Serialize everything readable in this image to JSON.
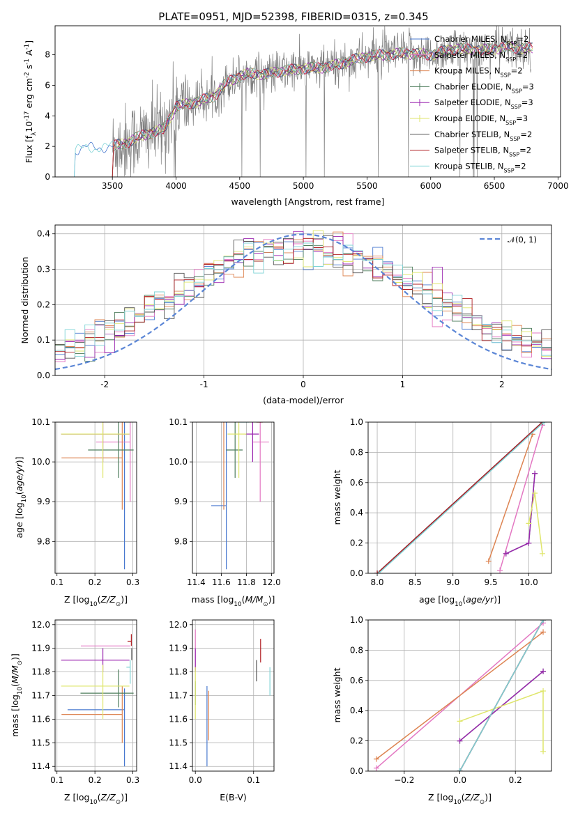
{
  "figure": {
    "title": "PLATE=0951, MJD=52398, FIBERID=0315, z=0.345"
  },
  "palette": {
    "Chabrier MILES": "#4878cf",
    "Salpeter MILES": "#e377c2",
    "Kroupa MILES": "#dd8452",
    "Chabrier ELODIE": "#4e7d5c",
    "Salpeter ELODIE": "#9b27b0",
    "Kroupa ELODIE": "#dfe66b",
    "Chabrier STELIB": "#555555",
    "Salpeter STELIB": "#b01e22",
    "Kroupa STELIB": "#7ed3d6",
    "normal": "#5b86d6"
  },
  "chart_data": [
    {
      "id": "spectrum",
      "type": "line",
      "xlabel": "wavelength [Angstrom, rest frame]",
      "ylabel": "Flux [f_λ 10^-17 erg cm^-2 s^-1 A^-1]",
      "xlim": [
        3050,
        7020
      ],
      "ylim": [
        0,
        9.9
      ],
      "xticks": [
        3500,
        4000,
        4500,
        5000,
        5500,
        6000,
        6500,
        7000
      ],
      "yticks": [
        0,
        2,
        4,
        6,
        8
      ],
      "legend": "right",
      "legend_entries": [
        "Chabrier MILES, N_SSP=2",
        "Salpeter MILES, N_SSP=2",
        "Kroupa MILES, N_SSP=2",
        "Chabrier ELODIE, N_SSP=3",
        "Salpeter ELODIE, N_SSP=3",
        "Kroupa ELODIE, N_SSP=3",
        "Chabrier STELIB, N_SSP=2",
        "Salpeter STELIB, N_SSP=2",
        "Kroupa STELIB, N_SSP=2"
      ],
      "continuum_shape": {
        "x": [
          3200,
          3300,
          3500,
          3600,
          3700,
          3800,
          3900,
          4000,
          4100,
          4200,
          4300,
          4400,
          4500,
          4600,
          4700,
          4800,
          5000,
          5200,
          5500,
          5800,
          6000,
          6200,
          6400,
          6600,
          6800
        ],
        "y": [
          1.7,
          1.9,
          2.0,
          2.2,
          2.6,
          2.9,
          3.1,
          4.6,
          4.8,
          5.0,
          5.3,
          6.2,
          6.6,
          6.8,
          6.7,
          6.9,
          7.1,
          7.2,
          7.9,
          8.1,
          8.0,
          8.4,
          8.3,
          8.5,
          8.4
        ]
      }
    },
    {
      "id": "residuals",
      "type": "line",
      "xlabel": "(data-model)/error",
      "ylabel": "Normed distribution",
      "xlim": [
        -2.5,
        2.5
      ],
      "ylim": [
        0,
        0.425
      ],
      "xticks": [
        -2,
        -1,
        0,
        1,
        2
      ],
      "yticks": [
        0.0,
        0.1,
        0.2,
        0.3,
        0.4
      ],
      "legend": "top-right",
      "legend_entries": [
        "N(0,1)"
      ],
      "series": [
        {
          "name": "N(0,1)",
          "mu": 0,
          "sigma": 1
        }
      ],
      "histogram_bins": 50,
      "histogram_range": [
        -2.5,
        2.5
      ]
    },
    {
      "id": "age_vs_Z",
      "type": "scatter",
      "xlabel": "Z [log10(Z/Z⊙)]",
      "ylabel": "age [log10(age/yr)]",
      "xlim": [
        0.095,
        0.31
      ],
      "ylim": [
        9.72,
        10.1
      ],
      "xticks": [
        0.1,
        0.2,
        0.3
      ],
      "yticks": [
        9.8,
        9.9,
        10.0,
        10.1
      ],
      "points": [
        {
          "model": "Chabrier MILES",
          "x": 0.278,
          "y": 9.89,
          "xerr": [
            0.0,
            0.0
          ],
          "yerr": [
            0.16,
            0.23
          ]
        },
        {
          "model": "Salpeter MILES",
          "x": 0.293,
          "y": 10.05,
          "xerr": [
            0.09,
            0.0
          ],
          "yerr": [
            0.15,
            0.05
          ]
        },
        {
          "model": "Kroupa MILES",
          "x": 0.272,
          "y": 10.01,
          "xerr": [
            0.16,
            0.0
          ],
          "yerr": [
            0.13,
            0.11
          ]
        },
        {
          "model": "Chabrier ELODIE",
          "x": 0.262,
          "y": 10.03,
          "xerr": [
            0.08,
            0.04
          ],
          "yerr": [
            0.07,
            0.08
          ]
        },
        {
          "model": "Salpeter ELODIE",
          "x": 0.221,
          "y": 10.07,
          "xerr": [
            0.11,
            0.07
          ],
          "yerr": [
            0.07,
            0.04
          ]
        },
        {
          "model": "Kroupa ELODIE",
          "x": 0.221,
          "y": 10.07,
          "xerr": [
            0.11,
            0.07
          ],
          "yerr": [
            0.11,
            0.07
          ]
        },
        {
          "model": "Chabrier STELIB",
          "x": 0.297,
          "y": 10.1,
          "xerr": [
            0.0,
            0.0
          ],
          "yerr": [
            0.0,
            0.05
          ]
        },
        {
          "model": "Salpeter STELIB",
          "x": 0.296,
          "y": 10.1,
          "xerr": [
            0.0,
            0.0
          ],
          "yerr": [
            0.0,
            0.05
          ]
        },
        {
          "model": "Kroupa STELIB",
          "x": 0.293,
          "y": 10.1,
          "xerr": [
            0.01,
            0.0
          ],
          "yerr": [
            0.0,
            0.05
          ]
        }
      ]
    },
    {
      "id": "age_vs_mass",
      "type": "scatter",
      "xlabel": "mass [log10(M/M⊙)]",
      "ylabel": "",
      "xlim": [
        11.37,
        12.02
      ],
      "ylim": [
        9.72,
        10.1
      ],
      "xticks": [
        11.4,
        11.6,
        11.8,
        12.0
      ],
      "yticks": [
        9.8,
        9.9,
        10.0,
        10.1
      ],
      "points": [
        {
          "model": "Chabrier MILES",
          "x": 11.64,
          "y": 9.89,
          "xerr": [
            0.12,
            0.0
          ],
          "yerr": [
            0.16,
            0.23
          ]
        },
        {
          "model": "Salpeter MILES",
          "x": 11.91,
          "y": 10.05,
          "xerr": [
            0.06,
            0.07
          ],
          "yerr": [
            0.15,
            0.05
          ]
        },
        {
          "model": "Kroupa MILES",
          "x": 11.62,
          "y": 10.01,
          "xerr": [
            0.0,
            0.0
          ],
          "yerr": [
            0.13,
            0.11
          ]
        },
        {
          "model": "Chabrier ELODIE",
          "x": 11.71,
          "y": 10.03,
          "xerr": [
            0.07,
            0.06
          ],
          "yerr": [
            0.07,
            0.08
          ]
        },
        {
          "model": "Salpeter ELODIE",
          "x": 11.85,
          "y": 10.07,
          "xerr": [
            0.06,
            0.05
          ],
          "yerr": [
            0.07,
            0.04
          ]
        },
        {
          "model": "Kroupa ELODIE",
          "x": 11.74,
          "y": 10.07,
          "xerr": [
            0.09,
            0.06
          ],
          "yerr": [
            0.11,
            0.07
          ]
        },
        {
          "model": "Chabrier STELIB",
          "x": 11.85,
          "y": 10.1,
          "xerr": [
            0.0,
            0.0
          ],
          "yerr": [
            0.0,
            0.05
          ]
        },
        {
          "model": "Salpeter STELIB",
          "x": 11.93,
          "y": 10.1,
          "xerr": [
            0.05,
            0.0
          ],
          "yerr": [
            0.0,
            0.05
          ]
        },
        {
          "model": "Kroupa STELIB",
          "x": 11.82,
          "y": 10.1,
          "xerr": [
            0.08,
            0.0
          ],
          "yerr": [
            0.0,
            0.05
          ]
        }
      ]
    },
    {
      "id": "weight_vs_age",
      "type": "line",
      "xlabel": "age [log10(age/yr)]",
      "ylabel": "mass weight",
      "xlim": [
        7.88,
        10.3
      ],
      "ylim": [
        0,
        1.0
      ],
      "xticks": [
        8.0,
        8.5,
        9.0,
        9.5,
        10.0
      ],
      "yticks": [
        0.0,
        0.2,
        0.4,
        0.6,
        0.8,
        1.0
      ],
      "series": [
        {
          "name": "Chabrier MILES",
          "x": [
            8.0,
            10.18
          ],
          "y": [
            0.0,
            1.0
          ]
        },
        {
          "name": "Salpeter MILES",
          "x": [
            9.62,
            10.18
          ],
          "y": [
            0.02,
            0.98
          ]
        },
        {
          "name": "Kroupa MILES",
          "x": [
            9.47,
            10.05
          ],
          "y": [
            0.08,
            0.92
          ]
        },
        {
          "name": "Chabrier ELODIE",
          "x": [
            9.7,
            10.0,
            10.08
          ],
          "y": [
            0.13,
            0.2,
            0.66
          ]
        },
        {
          "name": "Salpeter ELODIE",
          "x": [
            9.7,
            10.0,
            10.08
          ],
          "y": [
            0.13,
            0.2,
            0.66
          ]
        },
        {
          "name": "Kroupa ELODIE",
          "x": [
            10.0,
            10.08,
            10.18
          ],
          "y": [
            0.33,
            0.53,
            0.13
          ]
        },
        {
          "name": "Chabrier STELIB",
          "x": [
            8.0,
            10.18
          ],
          "y": [
            0.0,
            1.0
          ]
        },
        {
          "name": "Salpeter STELIB",
          "x": [
            8.0,
            10.18
          ],
          "y": [
            0.0,
            1.0
          ]
        },
        {
          "name": "Kroupa STELIB",
          "x": [
            8.02,
            10.2
          ],
          "y": [
            0.0,
            1.0
          ]
        }
      ]
    },
    {
      "id": "mass_vs_Z",
      "type": "scatter",
      "xlabel": "Z [log10(Z/Z⊙)]",
      "ylabel": "mass [log10(M/M⊙)]",
      "xlim": [
        0.095,
        0.31
      ],
      "ylim": [
        11.38,
        12.02
      ],
      "xticks": [
        0.1,
        0.2,
        0.3
      ],
      "yticks": [
        11.4,
        11.5,
        11.6,
        11.7,
        11.8,
        11.9,
        12.0
      ],
      "points": [
        {
          "model": "Chabrier MILES",
          "x": 0.278,
          "y": 11.64,
          "xerr": [
            0.15,
            0.0
          ],
          "yerr": [
            0.24,
            0.09
          ]
        },
        {
          "model": "Salpeter MILES",
          "x": 0.293,
          "y": 11.91,
          "xerr": [
            0.13,
            0.0
          ],
          "yerr": [
            0.0,
            0.0
          ]
        },
        {
          "model": "Kroupa MILES",
          "x": 0.272,
          "y": 11.62,
          "xerr": [
            0.16,
            0.0
          ],
          "yerr": [
            0.12,
            0.12
          ]
        },
        {
          "model": "Chabrier ELODIE",
          "x": 0.262,
          "y": 11.71,
          "xerr": [
            0.1,
            0.04
          ],
          "yerr": [
            0.06,
            0.1
          ]
        },
        {
          "model": "Salpeter ELODIE",
          "x": 0.221,
          "y": 11.85,
          "xerr": [
            0.11,
            0.07
          ],
          "yerr": [
            0.05,
            0.05
          ]
        },
        {
          "model": "Kroupa ELODIE",
          "x": 0.221,
          "y": 11.74,
          "xerr": [
            0.11,
            0.07
          ],
          "yerr": [
            0.14,
            0.09
          ]
        },
        {
          "model": "Chabrier STELIB",
          "x": 0.297,
          "y": 11.85,
          "xerr": [
            0.0,
            0.0
          ],
          "yerr": [
            0.0,
            0.05
          ]
        },
        {
          "model": "Salpeter STELIB",
          "x": 0.296,
          "y": 11.93,
          "xerr": [
            0.01,
            0.0
          ],
          "yerr": [
            0.02,
            0.03
          ]
        },
        {
          "model": "Kroupa STELIB",
          "x": 0.293,
          "y": 11.82,
          "xerr": [
            0.01,
            0.0
          ],
          "yerr": [
            0.07,
            0.03
          ]
        }
      ]
    },
    {
      "id": "mass_vs_ebv",
      "type": "scatter",
      "xlabel": "E(B-V)",
      "ylabel": "",
      "xlim": [
        -0.005,
        0.135
      ],
      "ylim": [
        11.38,
        12.02
      ],
      "xticks": [
        0.0,
        0.1
      ],
      "yticks": [
        11.4,
        11.5,
        11.6,
        11.7,
        11.8,
        11.9,
        12.0
      ],
      "points": [
        {
          "model": "Chabrier MILES",
          "x": 0.02,
          "y": 11.64,
          "yerr": [
            0.24,
            0.1
          ]
        },
        {
          "model": "Salpeter MILES",
          "x": 0.0,
          "y": 11.91,
          "yerr": [
            0.1,
            0.07
          ]
        },
        {
          "model": "Kroupa MILES",
          "x": 0.023,
          "y": 11.62,
          "yerr": [
            0.11,
            0.1
          ]
        },
        {
          "model": "Chabrier ELODIE",
          "x": 0.0,
          "y": 11.71,
          "yerr": [
            0.05,
            0.05
          ]
        },
        {
          "model": "Salpeter ELODIE",
          "x": 0.0,
          "y": 11.85,
          "yerr": [
            0.05,
            0.05
          ]
        },
        {
          "model": "Kroupa ELODIE",
          "x": 0.0,
          "y": 11.74,
          "yerr": [
            0.14,
            0.08
          ]
        },
        {
          "model": "Chabrier STELIB",
          "x": 0.105,
          "y": 11.8,
          "yerr": [
            0.04,
            0.05
          ]
        },
        {
          "model": "Salpeter STELIB",
          "x": 0.112,
          "y": 11.89,
          "yerr": [
            0.05,
            0.05
          ]
        },
        {
          "model": "Kroupa STELIB",
          "x": 0.128,
          "y": 11.76,
          "yerr": [
            0.06,
            0.06
          ]
        }
      ]
    },
    {
      "id": "weight_vs_Z",
      "type": "line",
      "xlabel": "Z [log10(Z/Z⊙)]",
      "ylabel": "mass weight",
      "xlim": [
        -0.33,
        0.33
      ],
      "ylim": [
        0,
        1.0
      ],
      "xticks": [
        -0.2,
        0.0,
        0.2
      ],
      "yticks": [
        0.0,
        0.2,
        0.4,
        0.6,
        0.8,
        1.0
      ],
      "series": [
        {
          "name": "Chabrier MILES",
          "x": [
            0.0,
            0.3
          ],
          "y": [
            0.0,
            1.0
          ]
        },
        {
          "name": "Salpeter MILES",
          "x": [
            -0.3,
            0.3
          ],
          "y": [
            0.02,
            0.98
          ]
        },
        {
          "name": "Kroupa MILES",
          "x": [
            -0.3,
            0.3
          ],
          "y": [
            0.08,
            0.92
          ]
        },
        {
          "name": "Chabrier ELODIE",
          "x": [
            0.0,
            0.3
          ],
          "y": [
            0.2,
            0.66
          ]
        },
        {
          "name": "Salpeter ELODIE",
          "x": [
            0.0,
            0.3
          ],
          "y": [
            0.2,
            0.66
          ]
        },
        {
          "name": "Kroupa ELODIE",
          "x": [
            0.0,
            0.3,
            0.3
          ],
          "y": [
            0.33,
            0.53,
            0.13
          ]
        },
        {
          "name": "Chabrier STELIB",
          "x": [
            0.0,
            0.3
          ],
          "y": [
            0.0,
            1.0
          ]
        },
        {
          "name": "Salpeter STELIB",
          "x": [
            0.0,
            0.3
          ],
          "y": [
            0.0,
            1.0
          ]
        },
        {
          "name": "Kroupa STELIB",
          "x": [
            0.0,
            0.3
          ],
          "y": [
            0.0,
            1.0
          ]
        }
      ]
    }
  ]
}
